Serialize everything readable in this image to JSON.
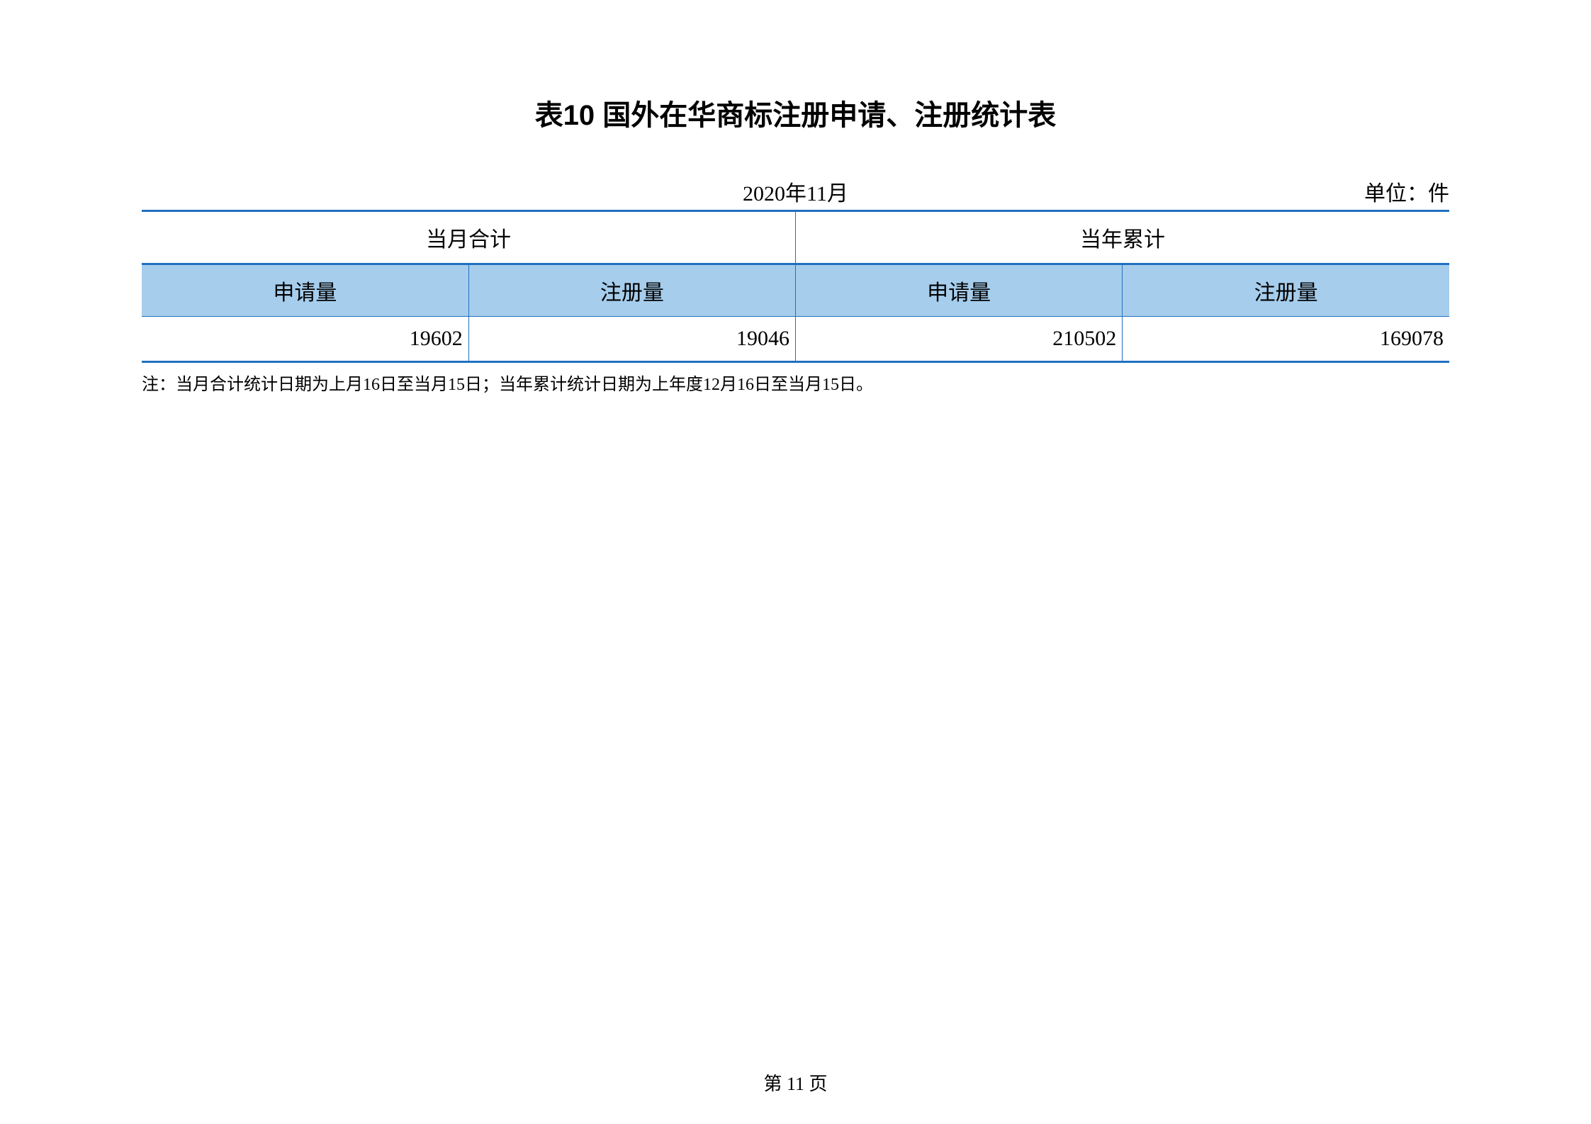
{
  "title": "表10 国外在华商标注册申请、注册统计表",
  "meta": {
    "date": "2020年11月",
    "unit": "单位：件"
  },
  "table": {
    "group_headers": [
      "当月合计",
      "当年累计"
    ],
    "column_headers": [
      "申请量",
      "注册量",
      "申请量",
      "注册量"
    ],
    "data_row": [
      "19602",
      "19046",
      "210502",
      "169078"
    ],
    "colors": {
      "border_color": "#2070c0",
      "header_bg": "#a6cdec",
      "text_color": "#000000",
      "background": "#ffffff"
    }
  },
  "footnote": "注：当月合计统计日期为上月16日至当月15日；当年累计统计日期为上年度12月16日至当月15日。",
  "page_number": "第 11 页"
}
